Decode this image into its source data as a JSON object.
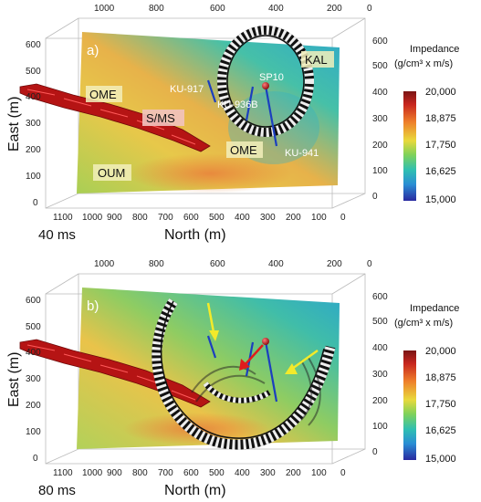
{
  "panels": [
    {
      "id": "a)",
      "time": "40 ms",
      "labels": {
        "ome_upper": "OME",
        "sms": "S/MS",
        "ome_lower": "OME",
        "oum": "OUM",
        "kal": "KAL",
        "sp10": "SP10",
        "ku917": "KU-917",
        "ku936b": "KU-936B",
        "ku941": "KU-941"
      }
    },
    {
      "id": "b)",
      "time": "80 ms"
    }
  ],
  "axes": {
    "east_label": "East (m)",
    "north_label": "North (m)",
    "top_ticks": [
      "1000",
      "800",
      "600",
      "400",
      "200",
      "0"
    ],
    "bottom_ticks": [
      "1100",
      "1000",
      "900",
      "800",
      "700",
      "600",
      "500",
      "400",
      "300",
      "200",
      "100",
      "0"
    ],
    "left_ticks": [
      "600",
      "500",
      "400",
      "300",
      "200",
      "100",
      "0"
    ],
    "right_ticks": [
      "600",
      "500",
      "400",
      "300",
      "200",
      "100",
      "0"
    ]
  },
  "colorbar": {
    "title_line1": "Impedance",
    "title_line2": "(g/cm³ x m/s)",
    "ticks": [
      "20,000",
      "18,875",
      "17,750",
      "16,625",
      "15,000"
    ],
    "colors": [
      "#8b1a1a",
      "#d8342a",
      "#f08a2a",
      "#e8d83a",
      "#9ad24a",
      "#3ec0a8",
      "#2aa8c8",
      "#2a5ad8",
      "#3a2a9a"
    ]
  }
}
